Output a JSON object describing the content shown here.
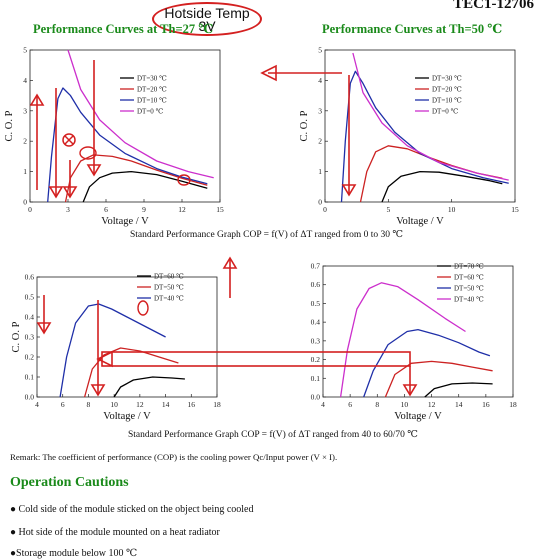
{
  "header": {
    "model": "TEC1-12706",
    "annotation_line1": "Hotside Temp",
    "annotation_line2": "3V",
    "title_left": "Performance Curves at Th=27 ℃",
    "title_right": "Performance Curves at Th=50 ℃"
  },
  "captions": {
    "top": "Standard Performance Graph COP = f(V) of ΔT ranged from 0 to 30 ℃",
    "bottom": "Standard Performance Graph COP = f(V) of ΔT ranged from 40 to 60/70 ℃"
  },
  "remark": "Remark: The coefficient of performance (COP) is the cooling power Qc/Input power (V × I).",
  "cautions": {
    "heading": "Operation Cautions",
    "items": [
      "● Cold side of the module sticked on the object being cooled",
      "● Hot side of the module mounted on a heat radiator",
      "●Storage module below 100 ℃"
    ]
  },
  "colors": {
    "title_green": "#1a8a1a",
    "annotation_red": "#d42020",
    "series_black": "#000000",
    "series_red": "#cc2222",
    "series_blue": "#1f2fa8",
    "series_magenta": "#cc2fcc"
  },
  "chart_data": [
    {
      "type": "line",
      "id": "tl",
      "title": "Performance Curves at Th=27 ℃",
      "xlabel": "Voltage / V",
      "ylabel": "C. O. P",
      "xlim": [
        0,
        15
      ],
      "ylim": [
        0,
        5
      ],
      "xticks": [
        0,
        3,
        6,
        9,
        12,
        15
      ],
      "yticks": [
        0,
        1,
        2,
        3,
        4,
        5
      ],
      "legend": "top-right",
      "series": [
        {
          "name": "DT=30 ℃",
          "color": "#000000",
          "x": [
            4.2,
            4.7,
            5.5,
            6.5,
            8,
            10,
            12,
            14
          ],
          "y": [
            0,
            0.5,
            0.8,
            0.95,
            1.0,
            0.9,
            0.68,
            0.45
          ]
        },
        {
          "name": "DT=20 ℃",
          "color": "#cc2222",
          "x": [
            2.8,
            3.2,
            4,
            5,
            6.5,
            8,
            10,
            12,
            14
          ],
          "y": [
            0,
            0.8,
            1.35,
            1.55,
            1.5,
            1.35,
            1.05,
            0.78,
            0.55
          ]
        },
        {
          "name": "DT=10 ℃",
          "color": "#1f2fa8",
          "x": [
            1.4,
            1.7,
            2.2,
            2.6,
            3.2,
            4,
            5.5,
            7.5,
            10,
            12,
            14
          ],
          "y": [
            0,
            1.5,
            3.4,
            3.75,
            3.5,
            2.95,
            2.2,
            1.6,
            1.1,
            0.82,
            0.6
          ]
        },
        {
          "name": "DT=0 ℃",
          "color": "#cc2fcc",
          "x": [
            3,
            4,
            5.5,
            7.5,
            10,
            12.5,
            14.5
          ],
          "y": [
            5,
            3.7,
            2.7,
            1.95,
            1.35,
            1.0,
            0.8
          ]
        }
      ]
    },
    {
      "type": "line",
      "id": "tr",
      "title": "Performance Curves at Th=50 ℃",
      "xlabel": "Voltage / V",
      "ylabel": "C. O. P",
      "xlim": [
        0,
        15
      ],
      "ylim": [
        0,
        5
      ],
      "xticks": [
        0,
        5,
        10,
        15
      ],
      "yticks": [
        0,
        1,
        2,
        3,
        4,
        5
      ],
      "legend": "top-right",
      "series": [
        {
          "name": "DT=30 ℃",
          "color": "#000000",
          "x": [
            4.5,
            5,
            6,
            7.5,
            9,
            11,
            13,
            14
          ],
          "y": [
            0,
            0.5,
            0.85,
            1.0,
            0.98,
            0.85,
            0.7,
            0.6
          ]
        },
        {
          "name": "DT=20 ℃",
          "color": "#cc2222",
          "x": [
            2.8,
            3.3,
            4,
            5,
            6.5,
            8,
            10,
            12,
            14
          ],
          "y": [
            0,
            1.0,
            1.65,
            1.85,
            1.75,
            1.5,
            1.2,
            0.95,
            0.78
          ]
        },
        {
          "name": "DT=10 ℃",
          "color": "#1f2fa8",
          "x": [
            1.3,
            1.6,
            2,
            2.4,
            3,
            4,
            5.5,
            7.5,
            10,
            12.5,
            14.5
          ],
          "y": [
            0,
            2.0,
            3.9,
            4.3,
            3.9,
            3.1,
            2.3,
            1.6,
            1.1,
            0.8,
            0.62
          ]
        },
        {
          "name": "DT=0 ℃",
          "color": "#cc2fcc",
          "x": [
            2.2,
            3,
            4.5,
            6.5,
            9,
            12,
            14.5
          ],
          "y": [
            4.9,
            3.6,
            2.6,
            1.85,
            1.3,
            0.95,
            0.72
          ]
        }
      ]
    },
    {
      "type": "line",
      "id": "bl",
      "xlabel": "Voltage / V",
      "ylabel": "C. O. P",
      "xlim": [
        4,
        18
      ],
      "ylim": [
        0,
        0.6
      ],
      "xticks": [
        4,
        6,
        8,
        10,
        12,
        14,
        16,
        18
      ],
      "yticks": [
        0.0,
        0.1,
        0.2,
        0.3,
        0.4,
        0.5,
        0.6
      ],
      "legend": "top-right",
      "series": [
        {
          "name": "DT=60 ℃",
          "color": "#000000",
          "x": [
            10,
            10.5,
            11.5,
            13,
            14.5,
            15.5
          ],
          "y": [
            0,
            0.05,
            0.085,
            0.1,
            0.095,
            0.09
          ]
        },
        {
          "name": "DT=50 ℃",
          "color": "#cc2222",
          "x": [
            7.7,
            8.3,
            9.2,
            10.5,
            12,
            13.5,
            15
          ],
          "y": [
            0,
            0.14,
            0.21,
            0.245,
            0.23,
            0.2,
            0.17
          ]
        },
        {
          "name": "DT=40 ℃",
          "color": "#1f2fa8",
          "x": [
            5.8,
            6.3,
            7,
            8,
            8.8,
            9.8,
            11,
            12.5,
            14
          ],
          "y": [
            0,
            0.2,
            0.37,
            0.455,
            0.465,
            0.44,
            0.4,
            0.35,
            0.3
          ]
        }
      ]
    },
    {
      "type": "line",
      "id": "br",
      "xlabel": "Voltage / V",
      "ylabel": "",
      "xlim": [
        4,
        18
      ],
      "ylim": [
        0,
        0.7
      ],
      "xticks": [
        4,
        6,
        8,
        10,
        12,
        14,
        16,
        18
      ],
      "yticks": [
        0.0,
        0.1,
        0.2,
        0.3,
        0.4,
        0.5,
        0.6,
        0.7
      ],
      "legend": "top-right",
      "series": [
        {
          "name": "DT=70 ℃",
          "color": "#000000",
          "x": [
            11.5,
            12.2,
            13.5,
            15,
            16.5
          ],
          "y": [
            0,
            0.045,
            0.07,
            0.075,
            0.07
          ]
        },
        {
          "name": "DT=60 ℃",
          "color": "#cc2222",
          "x": [
            8.6,
            9.3,
            10.5,
            12,
            13.5,
            15,
            16.5
          ],
          "y": [
            0,
            0.12,
            0.18,
            0.19,
            0.18,
            0.16,
            0.14
          ]
        },
        {
          "name": "DT=50 ℃",
          "color": "#1f2fa8",
          "x": [
            7,
            7.7,
            8.8,
            10.2,
            11,
            12.5,
            14,
            15.5,
            16.3
          ],
          "y": [
            0,
            0.14,
            0.28,
            0.35,
            0.36,
            0.33,
            0.29,
            0.24,
            0.22
          ]
        },
        {
          "name": "DT=40 ℃",
          "color": "#cc2fcc",
          "x": [
            5.3,
            5.8,
            6.5,
            7.4,
            8.3,
            9.5,
            11,
            13,
            14.5
          ],
          "y": [
            0,
            0.25,
            0.47,
            0.58,
            0.61,
            0.59,
            0.52,
            0.42,
            0.35
          ]
        }
      ]
    }
  ]
}
